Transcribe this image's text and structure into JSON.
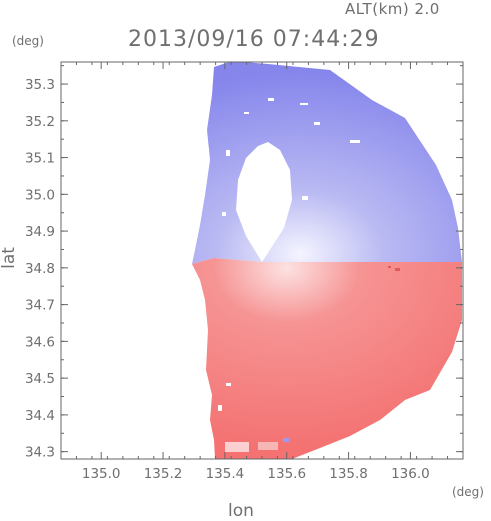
{
  "header": {
    "altitude": "ALT(km) 2.0",
    "datetime": "2013/09/16 07:44:29"
  },
  "chart_data": {
    "type": "heatmap",
    "title": "2013/09/16 07:44:29",
    "subtitle": "ALT(km) 2.0",
    "xlabel": "lon",
    "ylabel": "lat",
    "xunit": "(deg)",
    "yunit": "(deg)",
    "xlim": [
      134.87,
      136.17
    ],
    "ylim": [
      34.28,
      35.36
    ],
    "xticks": [
      135.0,
      135.2,
      135.4,
      135.6,
      135.8,
      136.0
    ],
    "xtick_labels": [
      "135.0",
      "135.2",
      "135.4",
      "135.6",
      "135.8",
      "136.0"
    ],
    "yticks": [
      34.3,
      34.4,
      34.5,
      34.6,
      34.7,
      34.8,
      34.9,
      35.0,
      35.1,
      35.2,
      35.3
    ],
    "ytick_labels": [
      "34.3",
      "34.4",
      "34.5",
      "34.6",
      "34.7",
      "34.8",
      "34.9",
      "35.0",
      "35.1",
      "35.2",
      "35.3"
    ],
    "grid": false,
    "radar_center": {
      "lon": 135.52,
      "lat": 34.82
    },
    "colors": {
      "approaching": "#7a7ae8",
      "receding": "#f06e6e",
      "neutral": "#ffffff"
    },
    "field_summary": "north of the radar site negative (blue) values, south of the site positive (red) values"
  }
}
